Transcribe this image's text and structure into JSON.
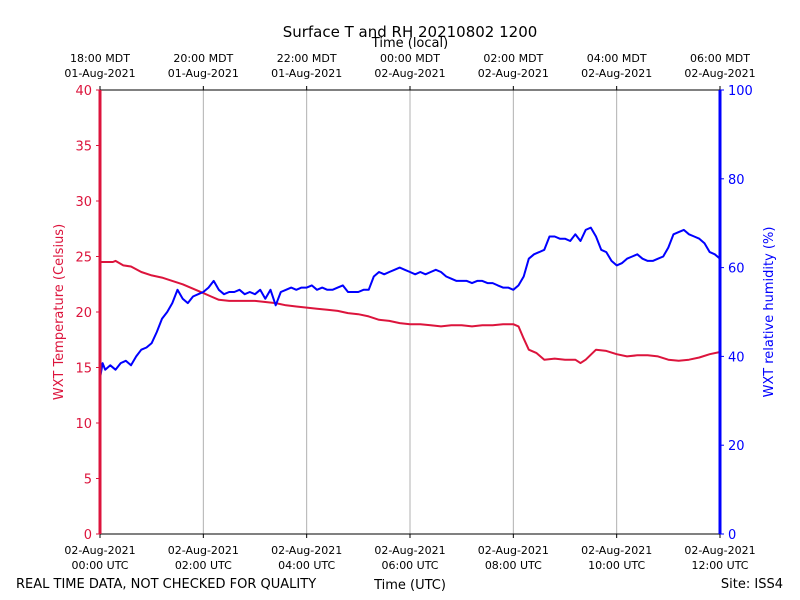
{
  "chart_data": {
    "type": "line",
    "title": "Surface T and RH 20210802 1200",
    "top_axis_label": "Time (local)",
    "xlabel": "Time (UTC)",
    "ylabel_left": "WXT Temperature (Celsius)",
    "ylabel_right": "WXT relative humidity (%)",
    "footer_left": "REAL TIME DATA, NOT CHECKED FOR QUALITY",
    "footer_right": "Site: ISS4",
    "xlim_hours": [
      0,
      12
    ],
    "ylim_left": [
      0,
      40
    ],
    "ylim_right": [
      0,
      100
    ],
    "grid_vertical": true,
    "colors": {
      "temperature": "#dc143c",
      "humidity": "#0000ff",
      "grid": "#b0b0b0",
      "axis": "#000000"
    },
    "left_ticks": [
      "0",
      "5",
      "10",
      "15",
      "20",
      "25",
      "30",
      "35",
      "40"
    ],
    "right_ticks": [
      "0",
      "20",
      "40",
      "60",
      "80",
      "100"
    ],
    "bottom_ticks": [
      {
        "hour": 0,
        "line1": "02-Aug-2021",
        "line2": "00:00 UTC"
      },
      {
        "hour": 2,
        "line1": "02-Aug-2021",
        "line2": "02:00 UTC"
      },
      {
        "hour": 4,
        "line1": "02-Aug-2021",
        "line2": "04:00 UTC"
      },
      {
        "hour": 6,
        "line1": "02-Aug-2021",
        "line2": "06:00 UTC"
      },
      {
        "hour": 8,
        "line1": "02-Aug-2021",
        "line2": "08:00 UTC"
      },
      {
        "hour": 10,
        "line1": "02-Aug-2021",
        "line2": "10:00 UTC"
      },
      {
        "hour": 12,
        "line1": "02-Aug-2021",
        "line2": "12:00 UTC"
      }
    ],
    "top_ticks": [
      {
        "hour": 0,
        "line1": "18:00 MDT",
        "line2": "01-Aug-2021"
      },
      {
        "hour": 2,
        "line1": "20:00 MDT",
        "line2": "01-Aug-2021"
      },
      {
        "hour": 4,
        "line1": "22:00 MDT",
        "line2": "01-Aug-2021"
      },
      {
        "hour": 6,
        "line1": "00:00 MDT",
        "line2": "02-Aug-2021"
      },
      {
        "hour": 8,
        "line1": "02:00 MDT",
        "line2": "02-Aug-2021"
      },
      {
        "hour": 10,
        "line1": "04:00 MDT",
        "line2": "02-Aug-2021"
      },
      {
        "hour": 12,
        "line1": "06:00 MDT",
        "line2": "02-Aug-2021"
      }
    ],
    "series": [
      {
        "name": "WXT Temperature (Celsius)",
        "axis": "left",
        "x": [
          0,
          0.25,
          0.3,
          0.45,
          0.6,
          0.8,
          1.0,
          1.2,
          1.4,
          1.6,
          1.8,
          2.0,
          2.15,
          2.3,
          2.5,
          2.8,
          3.0,
          3.2,
          3.4,
          3.6,
          3.8,
          4.0,
          4.2,
          4.4,
          4.6,
          4.8,
          5.0,
          5.2,
          5.4,
          5.6,
          5.8,
          6.0,
          6.2,
          6.4,
          6.6,
          6.8,
          7.0,
          7.2,
          7.4,
          7.6,
          7.8,
          8.0,
          8.1,
          8.2,
          8.3,
          8.45,
          8.6,
          8.8,
          9.0,
          9.2,
          9.3,
          9.4,
          9.6,
          9.8,
          10.0,
          10.2,
          10.4,
          10.6,
          10.8,
          11.0,
          11.2,
          11.4,
          11.6,
          11.8,
          12.0
        ],
        "values": [
          24.5,
          24.5,
          24.6,
          24.2,
          24.1,
          23.6,
          23.3,
          23.1,
          22.8,
          22.5,
          22.1,
          21.7,
          21.4,
          21.1,
          21.0,
          21.0,
          21.0,
          20.9,
          20.8,
          20.6,
          20.5,
          20.4,
          20.3,
          20.2,
          20.1,
          19.9,
          19.8,
          19.6,
          19.3,
          19.2,
          19.0,
          18.9,
          18.9,
          18.8,
          18.7,
          18.8,
          18.8,
          18.7,
          18.8,
          18.8,
          18.9,
          18.9,
          18.7,
          17.6,
          16.6,
          16.3,
          15.7,
          15.8,
          15.7,
          15.7,
          15.4,
          15.7,
          16.6,
          16.5,
          16.2,
          16.0,
          16.1,
          16.1,
          16.0,
          15.7,
          15.6,
          15.7,
          15.9,
          16.2,
          16.4
        ]
      },
      {
        "name": "WXT relative humidity (%)",
        "axis": "right",
        "x": [
          0,
          0.05,
          0.1,
          0.2,
          0.3,
          0.4,
          0.5,
          0.6,
          0.7,
          0.8,
          0.9,
          1.0,
          1.1,
          1.2,
          1.3,
          1.4,
          1.5,
          1.6,
          1.7,
          1.8,
          1.9,
          2.0,
          2.1,
          2.2,
          2.3,
          2.4,
          2.5,
          2.6,
          2.7,
          2.8,
          2.9,
          3.0,
          3.1,
          3.2,
          3.3,
          3.4,
          3.5,
          3.6,
          3.7,
          3.8,
          3.9,
          4.0,
          4.1,
          4.2,
          4.3,
          4.4,
          4.5,
          4.6,
          4.7,
          4.8,
          4.9,
          5.0,
          5.1,
          5.2,
          5.3,
          5.4,
          5.5,
          5.6,
          5.7,
          5.8,
          5.9,
          6.0,
          6.1,
          6.2,
          6.3,
          6.4,
          6.5,
          6.6,
          6.7,
          6.8,
          6.9,
          7.0,
          7.1,
          7.2,
          7.3,
          7.4,
          7.5,
          7.6,
          7.7,
          7.8,
          7.9,
          8.0,
          8.1,
          8.2,
          8.3,
          8.4,
          8.5,
          8.6,
          8.7,
          8.8,
          8.9,
          9.0,
          9.1,
          9.2,
          9.3,
          9.4,
          9.5,
          9.6,
          9.7,
          9.8,
          9.9,
          10.0,
          10.1,
          10.2,
          10.3,
          10.4,
          10.5,
          10.6,
          10.7,
          10.8,
          10.9,
          11.0,
          11.1,
          11.2,
          11.3,
          11.4,
          11.5,
          11.6,
          11.7,
          11.8,
          11.9,
          12.0
        ],
        "values": [
          35.0,
          38.5,
          37.0,
          38.0,
          37.0,
          38.5,
          39.0,
          38.0,
          40.0,
          41.5,
          42.0,
          43.0,
          45.5,
          48.5,
          50.0,
          52.0,
          55.0,
          53.0,
          52.0,
          53.5,
          54.0,
          54.5,
          55.5,
          57.0,
          55.0,
          54.0,
          54.5,
          54.5,
          55.0,
          54.0,
          54.5,
          54.0,
          55.0,
          53.0,
          55.0,
          51.5,
          54.5,
          55.0,
          55.5,
          55.0,
          55.5,
          55.5,
          56.0,
          55.0,
          55.5,
          55.0,
          55.0,
          55.5,
          56.0,
          54.5,
          54.5,
          54.5,
          55.0,
          55.0,
          58.0,
          59.0,
          58.5,
          59.0,
          59.5,
          60.0,
          59.5,
          59.0,
          58.5,
          59.0,
          58.5,
          59.0,
          59.5,
          59.0,
          58.0,
          57.5,
          57.0,
          57.0,
          57.0,
          56.5,
          57.0,
          57.0,
          56.5,
          56.5,
          56.0,
          55.5,
          55.5,
          55.0,
          56.0,
          58.0,
          62.0,
          63.0,
          63.5,
          64.0,
          67.0,
          67.0,
          66.5,
          66.5,
          66.0,
          67.5,
          66.0,
          68.5,
          69.0,
          67.0,
          64.0,
          63.5,
          61.5,
          60.5,
          61.0,
          62.0,
          62.5,
          63.0,
          62.0,
          61.5,
          61.5,
          62.0,
          62.5,
          64.5,
          67.5,
          68.0,
          68.5,
          67.5,
          67.0,
          66.5,
          65.5,
          63.5,
          63.0,
          62.0
        ]
      }
    ]
  }
}
